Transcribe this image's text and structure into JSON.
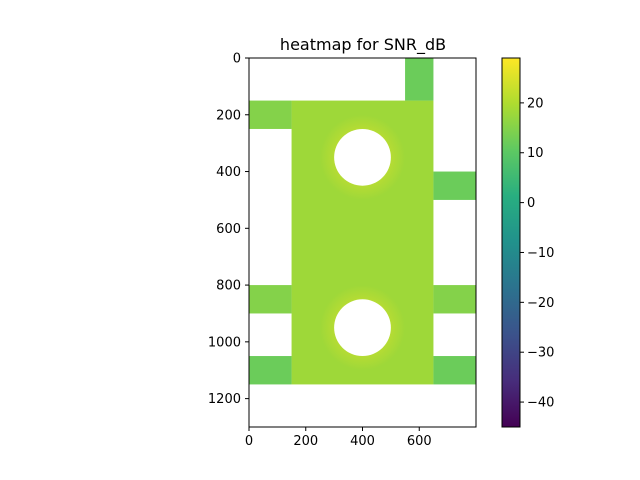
{
  "chart_data": {
    "type": "heatmap",
    "title": "heatmap for SNR_dB",
    "xlabel": "",
    "ylabel": "",
    "xlim": [
      0,
      800
    ],
    "ylim": [
      1300,
      0
    ],
    "y_inverted": true,
    "x_ticks": [
      0,
      200,
      400,
      600
    ],
    "y_ticks": [
      0,
      200,
      400,
      600,
      800,
      1000,
      1200
    ],
    "colormap": "viridis",
    "colorbar": {
      "range": [
        -45,
        29
      ],
      "ticks": [
        20,
        10,
        0,
        -10,
        -20,
        -30,
        -40
      ],
      "tick_labels": [
        "20",
        "10",
        "0",
        "−10",
        "−20",
        "−30",
        "−40"
      ]
    },
    "regions": [
      {
        "x": [
          150,
          650
        ],
        "y": [
          150,
          1150
        ],
        "value": 18
      },
      {
        "x": [
          550,
          650
        ],
        "y": [
          0,
          150
        ],
        "value": 12
      },
      {
        "x": [
          0,
          150
        ],
        "y": [
          150,
          250
        ],
        "value": 15
      },
      {
        "x": [
          650,
          800
        ],
        "y": [
          400,
          500
        ],
        "value": 12
      },
      {
        "x": [
          0,
          150
        ],
        "y": [
          800,
          900
        ],
        "value": 15
      },
      {
        "x": [
          650,
          800
        ],
        "y": [
          800,
          900
        ],
        "value": 15
      },
      {
        "x": [
          0,
          150
        ],
        "y": [
          1050,
          1150
        ],
        "value": 12
      },
      {
        "x": [
          650,
          800
        ],
        "y": [
          1050,
          1150
        ],
        "value": 12
      }
    ],
    "hotspots": [
      {
        "cx": 400,
        "cy": 350,
        "r": 150,
        "value": 26
      },
      {
        "cx": 400,
        "cy": 950,
        "r": 150,
        "value": 26
      }
    ],
    "holes": [
      {
        "cx": 400,
        "cy": 350,
        "r": 100
      },
      {
        "cx": 400,
        "cy": 950,
        "r": 100
      }
    ],
    "grid": false,
    "legend": "colorbar-right"
  }
}
